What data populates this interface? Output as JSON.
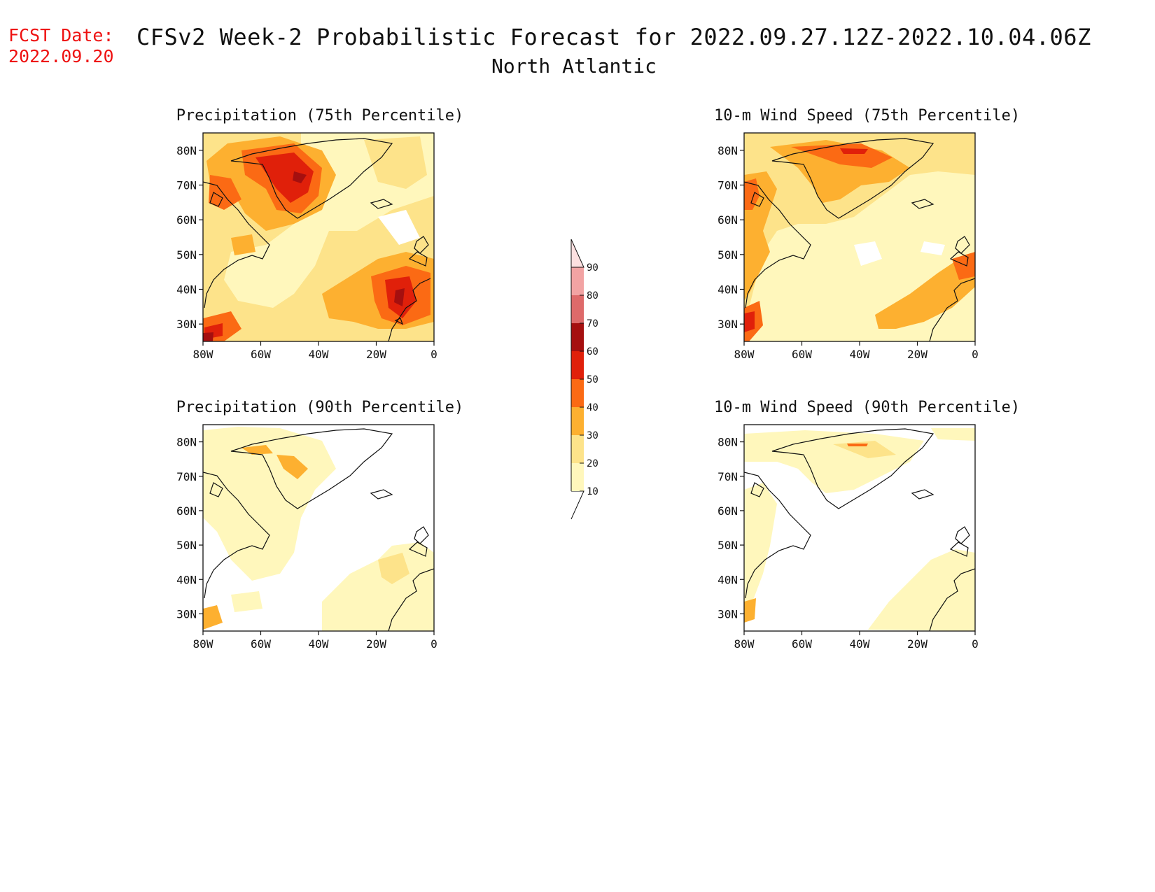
{
  "header": {
    "fcst_label": "FCST Date:",
    "fcst_date": "2022.09.20",
    "title": "CFSv2 Week-2 Probabilistic Forecast for 2022.09.27.12Z-2022.10.04.06Z",
    "subtitle": "North Atlantic"
  },
  "panels": [
    {
      "title": "Precipitation (75th Percentile)",
      "variable": "precip",
      "percentile": 75
    },
    {
      "title": "10-m Wind Speed (75th Percentile)",
      "variable": "wind",
      "percentile": 75
    },
    {
      "title": "Precipitation (90th Percentile)",
      "variable": "precip",
      "percentile": 90
    },
    {
      "title": "10-m Wind Speed (90th Percentile)",
      "variable": "wind",
      "percentile": 90
    }
  ],
  "map": {
    "lon_ticks": [
      "80W",
      "60W",
      "40W",
      "20W",
      "0"
    ],
    "lat_ticks": [
      "80N",
      "70N",
      "60N",
      "50N",
      "40N",
      "30N"
    ],
    "lon_range": [
      -80,
      0
    ],
    "lat_range": [
      25,
      85
    ]
  },
  "colorbar": {
    "labels": [
      "10",
      "20",
      "30",
      "40",
      "50",
      "60",
      "70",
      "80",
      "90"
    ],
    "colors": [
      "#fff7bc",
      "#fde38a",
      "#fdb030",
      "#fb6a14",
      "#e0200a",
      "#a50f0f",
      "#de6a6a",
      "#f2a3a3",
      "#fde0e0"
    ]
  }
}
